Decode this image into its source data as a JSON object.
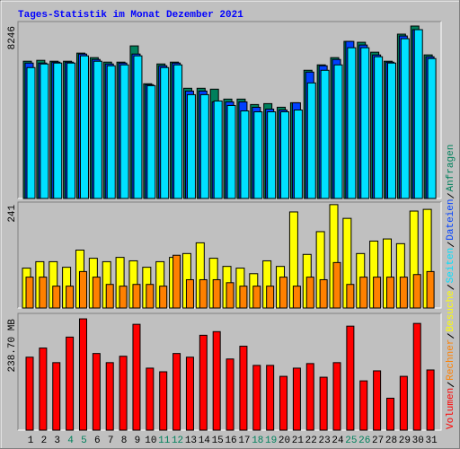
{
  "title": "Tages-Statistik im Monat Dezember 2021",
  "chart_data": [
    {
      "type": "bar",
      "ylim": [
        0,
        8461
      ],
      "yticks": [
        8246
      ],
      "series": [
        {
          "name": "Anfragen",
          "color": "#00805c",
          "values": [
            6563,
            6606,
            6563,
            6563,
            6952,
            6736,
            6520,
            6520,
            7297,
            5486,
            6433,
            6520,
            5270,
            5270,
            5227,
            4752,
            4752,
            4493,
            4536,
            4363,
            4579,
            6131,
            6390,
            6736,
            7513,
            7470,
            6995,
            6563,
            7859,
            8246,
            6866
          ]
        },
        {
          "name": "Dateien",
          "color": "#0040ff",
          "values": [
            6476,
            6476,
            6519,
            6519,
            6907,
            6648,
            6432,
            6476,
            6907,
            5439,
            6346,
            6476,
            5137,
            5137,
            4619,
            4619,
            4619,
            4360,
            4274,
            4231,
            4576,
            6044,
            6346,
            6648,
            7512,
            7339,
            6864,
            6519,
            7771,
            8073,
            6778
          ]
        },
        {
          "name": "Seiten",
          "color": "#00e0ff",
          "values": [
            6260,
            6432,
            6476,
            6476,
            6821,
            6562,
            6346,
            6389,
            6821,
            5396,
            6260,
            6389,
            4965,
            4965,
            4662,
            4447,
            4187,
            4144,
            4144,
            4144,
            4231,
            5526,
            6130,
            6389,
            7209,
            7209,
            6778,
            6476,
            7641,
            8073,
            6691
          ]
        }
      ]
    },
    {
      "type": "bar",
      "ylim": [
        0,
        247
      ],
      "yticks": [
        241
      ],
      "series": [
        {
          "name": "Besuche",
          "color": "#ffff00",
          "values": [
            93,
            108,
            108,
            95,
            135,
            116,
            108,
            118,
            110,
            95,
            108,
            118,
            127,
            152,
            116,
            97,
            93,
            80,
            110,
            97,
            224,
            125,
            178,
            241,
            209,
            127,
            156,
            161,
            150,
            226,
            230
          ]
        },
        {
          "name": "Rechner",
          "color": "#ff8000",
          "values": [
            72,
            72,
            51,
            51,
            85,
            72,
            55,
            51,
            55,
            55,
            51,
            123,
            66,
            66,
            66,
            59,
            51,
            51,
            51,
            72,
            51,
            72,
            66,
            106,
            55,
            72,
            72,
            72,
            72,
            78,
            85
          ]
        }
      ]
    },
    {
      "type": "bar",
      "ylim": [
        0,
        250.4
      ],
      "yticks": [
        {
          "value": 238.7,
          "label": "238.70 MB"
        }
      ],
      "categories": [
        "1",
        "2",
        "3",
        "4",
        "5",
        "6",
        "7",
        "8",
        "9",
        "10",
        "11",
        "12",
        "13",
        "14",
        "15",
        "16",
        "17",
        "18",
        "19",
        "20",
        "21",
        "22",
        "23",
        "24",
        "25",
        "26",
        "27",
        "28",
        "29",
        "30",
        "31"
      ],
      "category_colors": [
        "#000000",
        "#000000",
        "#000000",
        "#00805c",
        "#00805c",
        "#000000",
        "#000000",
        "#000000",
        "#000000",
        "#000000",
        "#00805c",
        "#00805c",
        "#000000",
        "#000000",
        "#000000",
        "#000000",
        "#000000",
        "#00805c",
        "#00805c",
        "#000000",
        "#000000",
        "#000000",
        "#000000",
        "#000000",
        "#00805c",
        "#00805c",
        "#000000",
        "#000000",
        "#000000",
        "#000000",
        "#000000"
      ],
      "series": [
        {
          "name": "Volumen",
          "color": "#ff0000",
          "values": [
            156.5,
            176.1,
            144.8,
            199.6,
            238.7,
            164.4,
            144.8,
            158.5,
            227.0,
            133.0,
            125.2,
            164.4,
            156.5,
            203.5,
            211.3,
            152.6,
            180.0,
            138.9,
            138.9,
            115.4,
            133.0,
            142.8,
            113.5,
            144.8,
            223.1,
            105.7,
            127.2,
            68.5,
            115.4,
            228.9,
            129.1
          ]
        }
      ]
    }
  ]
}
